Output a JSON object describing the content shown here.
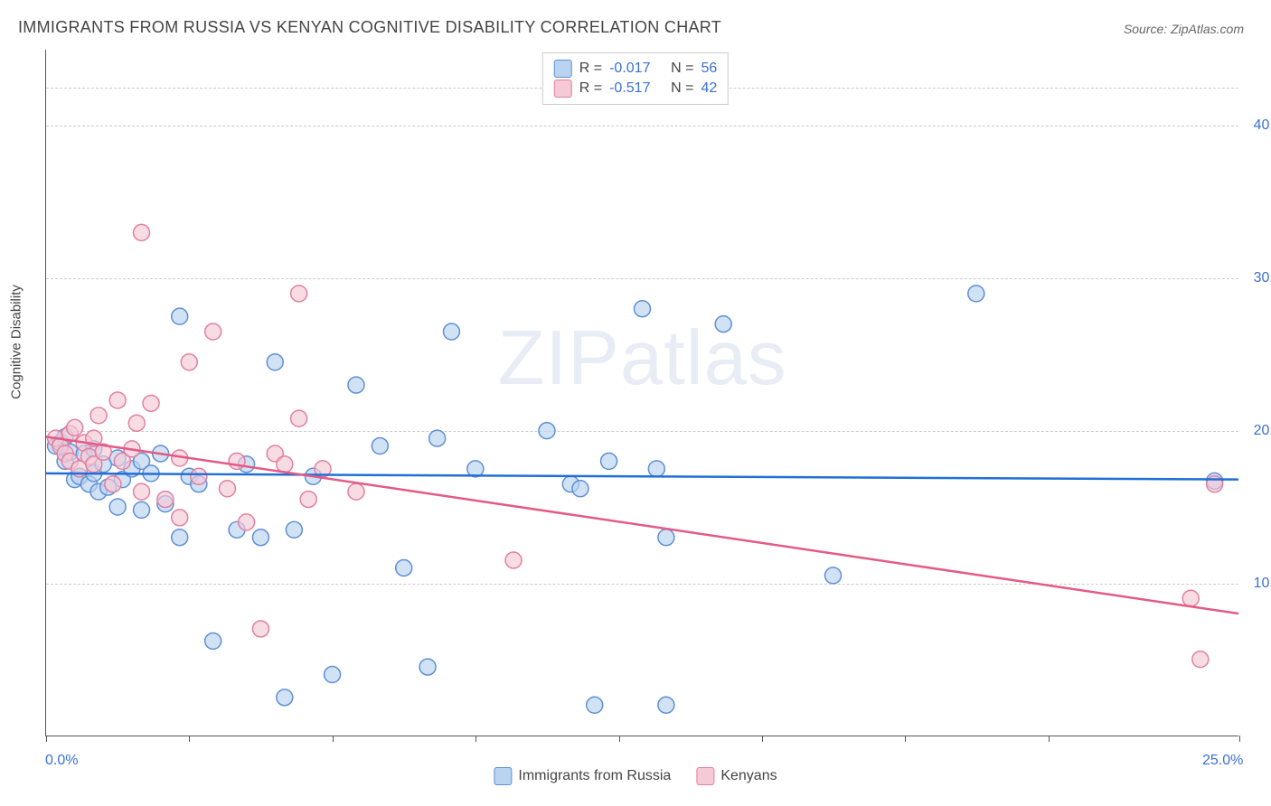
{
  "title": "IMMIGRANTS FROM RUSSIA VS KENYAN COGNITIVE DISABILITY CORRELATION CHART",
  "source_label": "Source:",
  "source_name": "ZipAtlas.com",
  "watermark": "ZIPatlas",
  "y_axis_label": "Cognitive Disability",
  "chart": {
    "type": "scatter",
    "xlim": [
      0,
      25
    ],
    "ylim": [
      0,
      45
    ],
    "x_ticks": [
      0,
      3,
      6,
      9,
      12,
      15,
      18,
      21,
      25
    ],
    "x_tick_labels": {
      "0": "0.0%",
      "25": "25.0%"
    },
    "y_gridlines": [
      10,
      20,
      30,
      40,
      42.5
    ],
    "y_tick_labels": {
      "10": "10.0%",
      "20": "20.0%",
      "30": "30.0%",
      "40": "40.0%"
    },
    "background_color": "#ffffff",
    "grid_color": "#cccccc",
    "axis_color": "#555555",
    "label_color": "#3b6fd6",
    "marker_radius": 9,
    "marker_stroke_width": 1.5,
    "trend_line_width": 2.5,
    "series": [
      {
        "id": "russia",
        "label": "Immigrants from Russia",
        "fill": "#b9d3f0",
        "stroke": "#5f8fd6",
        "fill_opacity": 0.65,
        "R": "-0.017",
        "N": "56",
        "trend": {
          "color": "#1f6fd6",
          "y_at_x0": 17.2,
          "y_at_xmax": 16.8
        },
        "points": [
          [
            0.2,
            19.0
          ],
          [
            0.3,
            19.2
          ],
          [
            0.4,
            18.0
          ],
          [
            0.4,
            19.6
          ],
          [
            0.5,
            18.6
          ],
          [
            0.6,
            16.8
          ],
          [
            0.7,
            17.0
          ],
          [
            0.8,
            18.5
          ],
          [
            0.9,
            16.5
          ],
          [
            1.0,
            17.2
          ],
          [
            1.0,
            18.8
          ],
          [
            1.1,
            16.0
          ],
          [
            1.2,
            17.8
          ],
          [
            1.3,
            16.3
          ],
          [
            1.5,
            15.0
          ],
          [
            1.5,
            18.2
          ],
          [
            1.6,
            16.8
          ],
          [
            1.8,
            17.5
          ],
          [
            2.0,
            18.0
          ],
          [
            2.0,
            14.8
          ],
          [
            2.2,
            17.2
          ],
          [
            2.4,
            18.5
          ],
          [
            2.5,
            15.2
          ],
          [
            2.8,
            27.5
          ],
          [
            2.8,
            13.0
          ],
          [
            3.0,
            17.0
          ],
          [
            3.2,
            16.5
          ],
          [
            3.5,
            6.2
          ],
          [
            4.0,
            13.5
          ],
          [
            4.2,
            17.8
          ],
          [
            4.5,
            13.0
          ],
          [
            4.8,
            24.5
          ],
          [
            5.0,
            2.5
          ],
          [
            5.2,
            13.5
          ],
          [
            5.6,
            17.0
          ],
          [
            6.0,
            4.0
          ],
          [
            6.5,
            23.0
          ],
          [
            7.0,
            19.0
          ],
          [
            7.5,
            11.0
          ],
          [
            8.0,
            4.5
          ],
          [
            8.2,
            19.5
          ],
          [
            8.5,
            26.5
          ],
          [
            9.0,
            17.5
          ],
          [
            10.5,
            20.0
          ],
          [
            11.0,
            16.5
          ],
          [
            11.2,
            16.2
          ],
          [
            11.5,
            2.0
          ],
          [
            11.8,
            18.0
          ],
          [
            12.5,
            28.0
          ],
          [
            12.8,
            17.5
          ],
          [
            13.0,
            2.0
          ],
          [
            13.0,
            13.0
          ],
          [
            14.2,
            27.0
          ],
          [
            16.5,
            10.5
          ],
          [
            19.5,
            29.0
          ],
          [
            24.5,
            16.7
          ]
        ]
      },
      {
        "id": "kenya",
        "label": "Kenyans",
        "fill": "#f5c9d6",
        "stroke": "#e37fa0",
        "fill_opacity": 0.65,
        "R": "-0.517",
        "N": "42",
        "trend": {
          "color": "#e35a85",
          "y_at_x0": 19.6,
          "y_at_xmax": 8.0
        },
        "points": [
          [
            0.2,
            19.5
          ],
          [
            0.3,
            19.0
          ],
          [
            0.4,
            18.5
          ],
          [
            0.5,
            19.8
          ],
          [
            0.5,
            18.0
          ],
          [
            0.6,
            20.2
          ],
          [
            0.7,
            17.5
          ],
          [
            0.8,
            19.2
          ],
          [
            0.9,
            18.3
          ],
          [
            1.0,
            17.8
          ],
          [
            1.0,
            19.5
          ],
          [
            1.1,
            21.0
          ],
          [
            1.2,
            18.6
          ],
          [
            1.4,
            16.5
          ],
          [
            1.5,
            22.0
          ],
          [
            1.6,
            18.0
          ],
          [
            1.8,
            18.8
          ],
          [
            1.9,
            20.5
          ],
          [
            2.0,
            33.0
          ],
          [
            2.0,
            16.0
          ],
          [
            2.2,
            21.8
          ],
          [
            2.5,
            15.5
          ],
          [
            2.8,
            18.2
          ],
          [
            2.8,
            14.3
          ],
          [
            3.0,
            24.5
          ],
          [
            3.2,
            17.0
          ],
          [
            3.5,
            26.5
          ],
          [
            3.8,
            16.2
          ],
          [
            4.0,
            18.0
          ],
          [
            4.2,
            14.0
          ],
          [
            4.5,
            7.0
          ],
          [
            4.8,
            18.5
          ],
          [
            5.0,
            17.8
          ],
          [
            5.3,
            20.8
          ],
          [
            5.3,
            29.0
          ],
          [
            5.5,
            15.5
          ],
          [
            5.8,
            17.5
          ],
          [
            6.5,
            16.0
          ],
          [
            9.8,
            11.5
          ],
          [
            24.0,
            9.0
          ],
          [
            24.2,
            5.0
          ],
          [
            24.5,
            16.5
          ]
        ]
      }
    ]
  },
  "legend_top": {
    "rows": [
      {
        "swatch_fill": "#b9d3f0",
        "swatch_stroke": "#5f8fd6",
        "r_label": "R =",
        "r_val": "-0.017",
        "n_label": "N =",
        "n_val": "56"
      },
      {
        "swatch_fill": "#f5c9d6",
        "swatch_stroke": "#e37fa0",
        "r_label": "R =",
        "r_val": "-0.517",
        "n_label": "N =",
        "n_val": "42"
      }
    ]
  }
}
